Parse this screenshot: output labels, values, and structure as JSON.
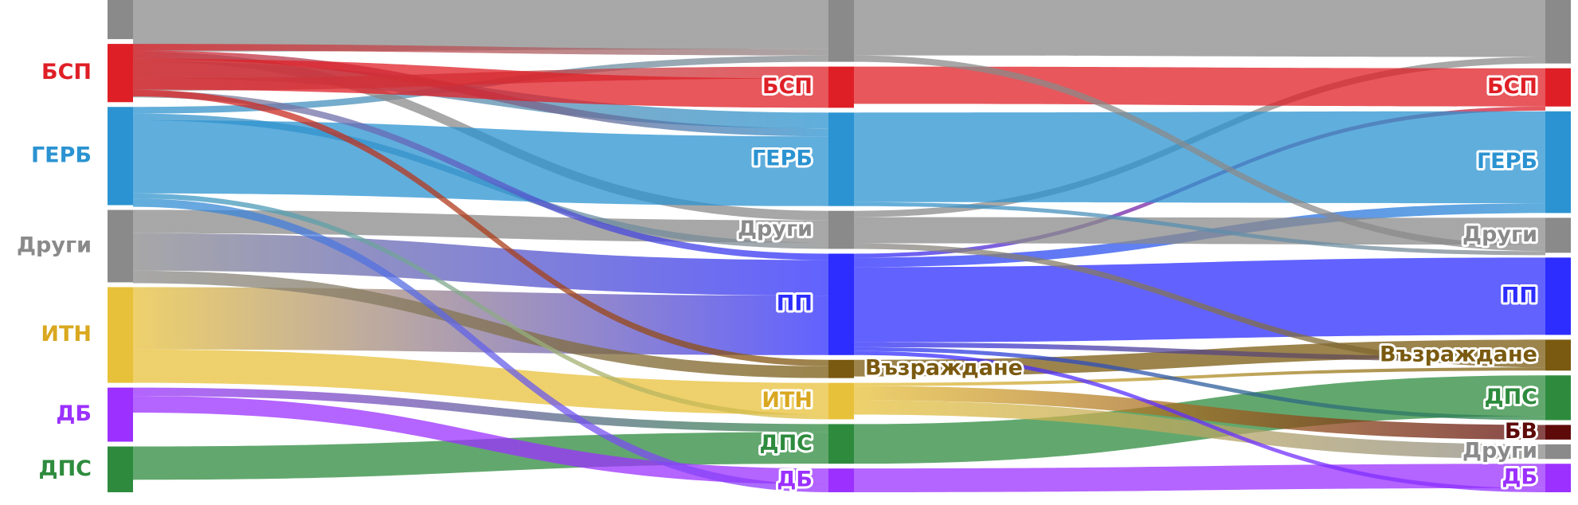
{
  "chart_data": {
    "type": "sankey",
    "colors": {
      "Други": "#8a8a8a",
      "БСП": "#df1f26",
      "ГЕРБ": "#2b93d1",
      "ИТН": "#e8c13a",
      "ДБ": "#9b30ff",
      "ДПС": "#2e8b3e",
      "ПП": "#2d2dff",
      "Възраждане": "#7a5a10",
      "БВ": "#5e0a0a"
    },
    "label_colors": {
      "Други": "#8a8a8a",
      "БСП": "#df1f26",
      "ГЕРБ": "#2b93d1",
      "ИТН": "#d9a820",
      "ДБ": "#9b30ff",
      "ДПС": "#2e8b3e",
      "ПП": "#2d2dff",
      "Възраждане": "#7a5a10",
      "БВ": "#5e0a0a"
    },
    "columns": [
      {
        "nodes": [
          {
            "name": "Други",
            "value": 47
          },
          {
            "name": "БСП",
            "value": 70
          },
          {
            "name": "ГЕРБ",
            "value": 118
          },
          {
            "name": "Други",
            "value": 87
          },
          {
            "name": "ИТН",
            "value": 115
          },
          {
            "name": "ДБ",
            "value": 65
          },
          {
            "name": "ДПС",
            "value": 55
          }
        ]
      },
      {
        "nodes": [
          {
            "name": "Други",
            "value": 78
          },
          {
            "name": "БСП",
            "value": 52
          },
          {
            "name": "ГЕРБ",
            "value": 118
          },
          {
            "name": "Други",
            "value": 48
          },
          {
            "name": "ПП",
            "value": 128
          },
          {
            "name": "Възраждане",
            "value": 23
          },
          {
            "name": "ИТН",
            "value": 46
          },
          {
            "name": "ДПС",
            "value": 50
          },
          {
            "name": "ДБ",
            "value": 30
          }
        ]
      },
      {
        "nodes": [
          {
            "name": "Други",
            "value": 78
          },
          {
            "name": "БСП",
            "value": 47
          },
          {
            "name": "ГЕРБ",
            "value": 125
          },
          {
            "name": "Други",
            "value": 43
          },
          {
            "name": "ПП",
            "value": 95
          },
          {
            "name": "Възраждане",
            "value": 38
          },
          {
            "name": "ДПС",
            "value": 55
          },
          {
            "name": "БВ",
            "value": 18
          },
          {
            "name": "Други",
            "value": 18
          },
          {
            "name": "ДБ",
            "value": 35
          }
        ]
      }
    ],
    "links": [
      [
        0,
        0,
        1,
        0,
        62
      ],
      [
        0,
        1,
        1,
        0,
        8
      ],
      [
        0,
        2,
        1,
        0,
        8
      ],
      [
        0,
        0,
        1,
        3,
        12
      ],
      [
        0,
        3,
        1,
        3,
        28
      ],
      [
        0,
        2,
        1,
        3,
        8
      ],
      [
        0,
        0,
        1,
        2,
        20
      ],
      [
        0,
        1,
        1,
        2,
        10
      ],
      [
        0,
        2,
        1,
        2,
        88
      ],
      [
        0,
        0,
        1,
        1,
        15
      ],
      [
        0,
        1,
        1,
        1,
        37
      ],
      [
        0,
        0,
        1,
        4,
        8
      ],
      [
        0,
        3,
        1,
        4,
        45
      ],
      [
        0,
        4,
        1,
        4,
        75
      ],
      [
        0,
        1,
        1,
        5,
        8
      ],
      [
        0,
        3,
        1,
        5,
        15
      ],
      [
        0,
        4,
        1,
        6,
        40
      ],
      [
        0,
        2,
        1,
        6,
        6
      ],
      [
        0,
        5,
        1,
        7,
        10
      ],
      [
        0,
        6,
        1,
        7,
        40
      ],
      [
        0,
        5,
        1,
        8,
        20
      ],
      [
        0,
        2,
        1,
        8,
        10
      ],
      [
        1,
        0,
        2,
        0,
        70
      ],
      [
        1,
        3,
        2,
        0,
        8
      ],
      [
        1,
        1,
        2,
        1,
        47
      ],
      [
        1,
        4,
        2,
        1,
        5
      ],
      [
        1,
        2,
        2,
        2,
        113
      ],
      [
        1,
        4,
        2,
        2,
        12
      ],
      [
        1,
        3,
        2,
        3,
        33
      ],
      [
        1,
        0,
        2,
        3,
        8
      ],
      [
        1,
        2,
        2,
        3,
        5
      ],
      [
        1,
        4,
        2,
        4,
        95
      ],
      [
        1,
        5,
        2,
        5,
        21
      ],
      [
        1,
        4,
        2,
        5,
        6
      ],
      [
        1,
        3,
        2,
        5,
        7
      ],
      [
        1,
        6,
        2,
        5,
        4
      ],
      [
        1,
        7,
        2,
        6,
        50
      ],
      [
        1,
        4,
        2,
        6,
        5
      ],
      [
        1,
        6,
        2,
        7,
        18
      ],
      [
        1,
        6,
        2,
        8,
        18
      ],
      [
        1,
        8,
        2,
        9,
        30
      ],
      [
        1,
        4,
        2,
        9,
        5
      ],
      [
        1,
        2,
        2,
        9,
        0
      ]
    ]
  }
}
